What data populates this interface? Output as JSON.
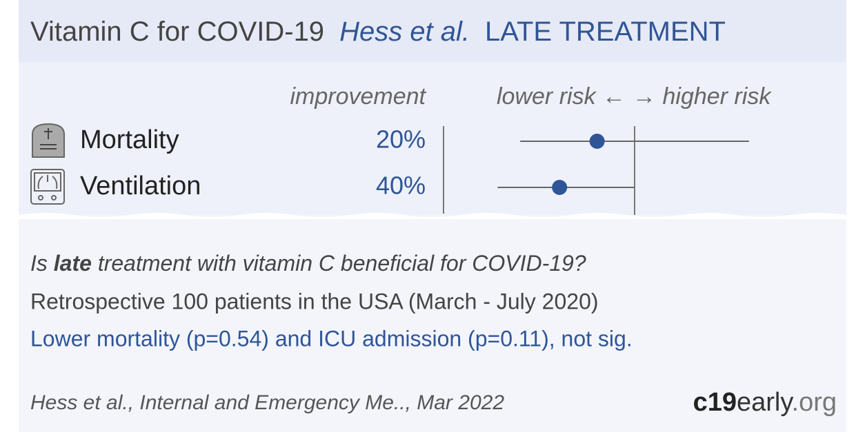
{
  "header": {
    "title": "Vitamin C for COVID-19",
    "study": "Hess et al.",
    "category": "LATE TREATMENT"
  },
  "plot": {
    "improvement_heading": "improvement",
    "lower_label": "lower risk ←",
    "higher_label": "→ higher risk",
    "rows": [
      {
        "outcome": "Mortality",
        "improvement": 20,
        "improvement_label": "20%",
        "ci": [
          -61,
          61
        ]
      },
      {
        "outcome": "Ventilation",
        "improvement": 40,
        "improvement_label": "40%",
        "ci": [
          0,
          73
        ]
      }
    ]
  },
  "summary": {
    "question_start": "Is ",
    "question_bold": "late",
    "question_end": " treatment with vitamin C beneficial for COVID-19?",
    "design": "Retrospective 100 patients in the USA (March - July 2020)",
    "result": "Lower mortality (p=0.54) and ICU admission (p=0.11), not sig."
  },
  "footer": {
    "citation": "Hess et al., Internal and Emergency Me.., Mar 2022",
    "site_bold": "c19",
    "site_rest": "early",
    "site_end": ".org"
  }
}
